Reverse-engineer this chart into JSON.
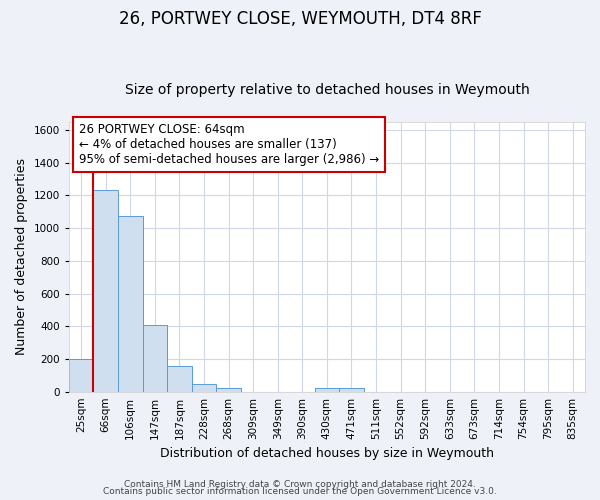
{
  "title": "26, PORTWEY CLOSE, WEYMOUTH, DT4 8RF",
  "subtitle": "Size of property relative to detached houses in Weymouth",
  "xlabel": "Distribution of detached houses by size in Weymouth",
  "ylabel": "Number of detached properties",
  "bin_labels": [
    "25sqm",
    "66sqm",
    "106sqm",
    "147sqm",
    "187sqm",
    "228sqm",
    "268sqm",
    "309sqm",
    "349sqm",
    "390sqm",
    "430sqm",
    "471sqm",
    "511sqm",
    "552sqm",
    "592sqm",
    "633sqm",
    "673sqm",
    "714sqm",
    "754sqm",
    "795sqm",
    "835sqm"
  ],
  "bar_heights": [
    200,
    1230,
    1075,
    410,
    160,
    50,
    25,
    0,
    0,
    0,
    20,
    20,
    0,
    0,
    0,
    0,
    0,
    0,
    0,
    0,
    0
  ],
  "bar_color": "#cfdff0",
  "bar_edge_color": "#5b9bd5",
  "property_line_color": "#cc0000",
  "annotation_text": "26 PORTWEY CLOSE: 64sqm\n← 4% of detached houses are smaller (137)\n95% of semi-detached houses are larger (2,986) →",
  "annotation_box_color": "#ffffff",
  "annotation_box_edge": "#cc0000",
  "ylim": [
    0,
    1650
  ],
  "yticks": [
    0,
    200,
    400,
    600,
    800,
    1000,
    1200,
    1400,
    1600
  ],
  "footer_line1": "Contains HM Land Registry data © Crown copyright and database right 2024.",
  "footer_line2": "Contains public sector information licensed under the Open Government Licence v3.0.",
  "background_color": "#eef2f8",
  "plot_bg_color": "#ffffff",
  "grid_color": "#d0d8e8",
  "title_fontsize": 12,
  "subtitle_fontsize": 10,
  "axis_label_fontsize": 9,
  "tick_fontsize": 7.5,
  "annotation_fontsize": 8.5,
  "footer_fontsize": 6.5
}
